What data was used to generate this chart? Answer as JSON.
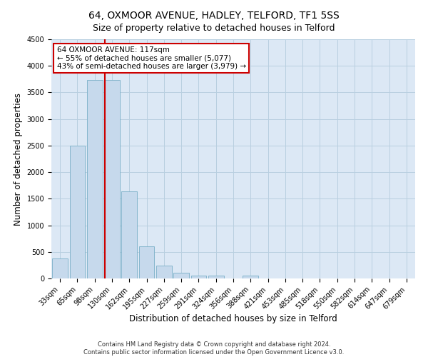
{
  "title": "64, OXMOOR AVENUE, HADLEY, TELFORD, TF1 5SS",
  "subtitle": "Size of property relative to detached houses in Telford",
  "xlabel": "Distribution of detached houses by size in Telford",
  "ylabel": "Number of detached properties",
  "categories": [
    "33sqm",
    "65sqm",
    "98sqm",
    "130sqm",
    "162sqm",
    "195sqm",
    "227sqm",
    "259sqm",
    "291sqm",
    "324sqm",
    "356sqm",
    "388sqm",
    "421sqm",
    "453sqm",
    "485sqm",
    "518sqm",
    "550sqm",
    "582sqm",
    "614sqm",
    "647sqm",
    "679sqm"
  ],
  "values": [
    380,
    2500,
    3730,
    3730,
    1640,
    600,
    240,
    105,
    60,
    50,
    0,
    60,
    0,
    0,
    0,
    0,
    0,
    0,
    0,
    0,
    0
  ],
  "bar_color": "#c6d9ec",
  "bar_edge_color": "#7aafc8",
  "vline_color": "#cc0000",
  "vline_x": 2.58,
  "annotation_text": "64 OXMOOR AVENUE: 117sqm\n← 55% of detached houses are smaller (5,077)\n43% of semi-detached houses are larger (3,979) →",
  "annotation_box_color": "#ffffff",
  "annotation_box_edgecolor": "#cc0000",
  "ylim": [
    0,
    4500
  ],
  "yticks": [
    0,
    500,
    1000,
    1500,
    2000,
    2500,
    3000,
    3500,
    4000,
    4500
  ],
  "footer_line1": "Contains HM Land Registry data © Crown copyright and database right 2024.",
  "footer_line2": "Contains public sector information licensed under the Open Government Licence v3.0.",
  "background_color": "#ffffff",
  "plot_bg_color": "#dce8f5",
  "grid_color": "#b8cfe0",
  "title_fontsize": 10,
  "subtitle_fontsize": 9,
  "axis_label_fontsize": 8.5,
  "tick_fontsize": 7,
  "annot_fontsize": 7.5,
  "footer_fontsize": 6
}
